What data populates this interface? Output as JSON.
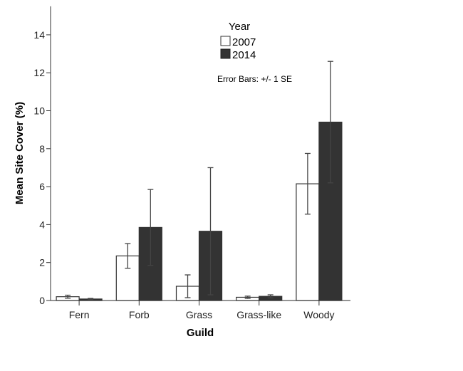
{
  "chart_data": {
    "type": "bar",
    "xlabel": "Guild",
    "ylabel": "Mean Site Cover (%)",
    "ylim": [
      0,
      15.5
    ],
    "yticks": [
      0,
      2,
      4,
      6,
      8,
      10,
      12,
      14
    ],
    "grid": false,
    "categories": [
      "Fern",
      "Forb",
      "Grass",
      "Grass-like",
      "Woody"
    ],
    "legend": {
      "title": "Year",
      "placement": "top-center"
    },
    "annotation": "Error Bars: +/- 1 SE",
    "series": [
      {
        "name": "2007",
        "color": "#ffffff",
        "values": [
          0.2,
          2.35,
          0.75,
          0.17,
          6.15
        ],
        "se": [
          0.08,
          0.65,
          0.6,
          0.06,
          1.6
        ]
      },
      {
        "name": "2014",
        "color": "#333333",
        "values": [
          0.08,
          3.85,
          3.65,
          0.22,
          9.4
        ],
        "se": [
          0.03,
          2.0,
          3.35,
          0.08,
          3.2
        ]
      }
    ]
  }
}
